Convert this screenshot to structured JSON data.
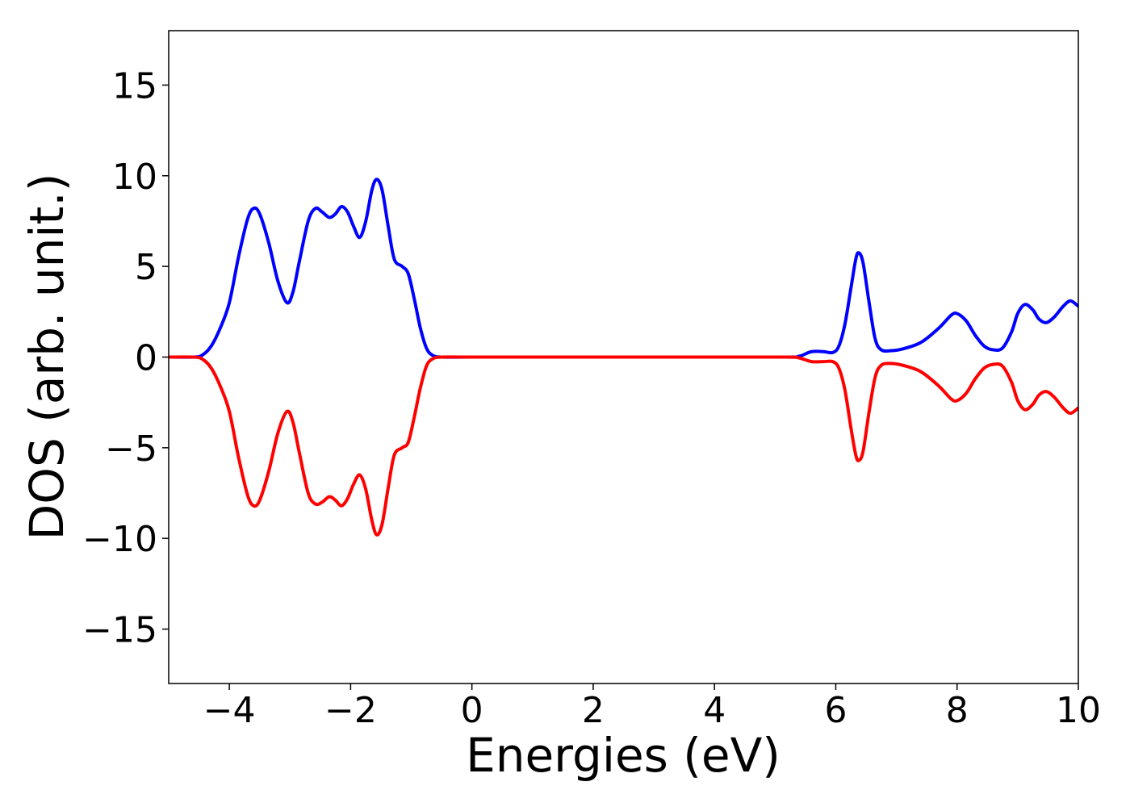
{
  "chart_data": {
    "type": "line",
    "title": "",
    "xlabel": "Energies (eV)",
    "ylabel": "DOS (arb. unit.)",
    "xlim": [
      -5,
      10
    ],
    "ylim": [
      -18,
      18
    ],
    "xticks": [
      -4,
      -2,
      0,
      2,
      4,
      6,
      8,
      10
    ],
    "xtick_labels": [
      "−4",
      "−2",
      "0",
      "2",
      "4",
      "6",
      "8",
      "10"
    ],
    "yticks": [
      -15,
      -10,
      -5,
      0,
      5,
      10,
      15
    ],
    "ytick_labels": [
      "−15",
      "−10",
      "−5",
      "0",
      "5",
      "10",
      "15"
    ],
    "grid": false,
    "legend": "none",
    "series": [
      {
        "color": "#0000ff",
        "points": [
          [
            -5.0,
            0.0
          ],
          [
            -4.6,
            0.0
          ],
          [
            -4.45,
            0.1
          ],
          [
            -4.3,
            0.6
          ],
          [
            -4.15,
            1.6
          ],
          [
            -4.0,
            3.0
          ],
          [
            -3.85,
            5.5
          ],
          [
            -3.7,
            7.6
          ],
          [
            -3.6,
            8.2
          ],
          [
            -3.5,
            7.9
          ],
          [
            -3.35,
            6.3
          ],
          [
            -3.2,
            4.2
          ],
          [
            -3.05,
            3.0
          ],
          [
            -2.95,
            3.6
          ],
          [
            -2.85,
            5.2
          ],
          [
            -2.7,
            7.5
          ],
          [
            -2.58,
            8.2
          ],
          [
            -2.47,
            8.0
          ],
          [
            -2.35,
            7.7
          ],
          [
            -2.25,
            7.9
          ],
          [
            -2.15,
            8.3
          ],
          [
            -2.05,
            8.0
          ],
          [
            -1.95,
            7.2
          ],
          [
            -1.85,
            6.6
          ],
          [
            -1.75,
            7.5
          ],
          [
            -1.65,
            9.2
          ],
          [
            -1.57,
            9.8
          ],
          [
            -1.48,
            9.2
          ],
          [
            -1.38,
            7.2
          ],
          [
            -1.28,
            5.4
          ],
          [
            -1.15,
            5.0
          ],
          [
            -1.05,
            4.6
          ],
          [
            -0.95,
            3.2
          ],
          [
            -0.85,
            1.6
          ],
          [
            -0.75,
            0.5
          ],
          [
            -0.65,
            0.1
          ],
          [
            -0.5,
            0.0
          ],
          [
            0.0,
            0.0
          ],
          [
            2.0,
            0.0
          ],
          [
            4.0,
            0.0
          ],
          [
            5.2,
            0.0
          ],
          [
            5.4,
            0.05
          ],
          [
            5.6,
            0.3
          ],
          [
            5.8,
            0.3
          ],
          [
            5.95,
            0.25
          ],
          [
            6.05,
            0.6
          ],
          [
            6.15,
            1.8
          ],
          [
            6.25,
            3.8
          ],
          [
            6.33,
            5.4
          ],
          [
            6.38,
            5.75
          ],
          [
            6.45,
            5.2
          ],
          [
            6.55,
            3.0
          ],
          [
            6.65,
            1.0
          ],
          [
            6.75,
            0.4
          ],
          [
            6.9,
            0.35
          ],
          [
            7.1,
            0.45
          ],
          [
            7.4,
            0.8
          ],
          [
            7.7,
            1.6
          ],
          [
            7.9,
            2.3
          ],
          [
            8.0,
            2.4
          ],
          [
            8.15,
            2.0
          ],
          [
            8.3,
            1.2
          ],
          [
            8.45,
            0.6
          ],
          [
            8.6,
            0.4
          ],
          [
            8.75,
            0.5
          ],
          [
            8.9,
            1.4
          ],
          [
            9.0,
            2.4
          ],
          [
            9.12,
            2.9
          ],
          [
            9.25,
            2.6
          ],
          [
            9.35,
            2.1
          ],
          [
            9.47,
            1.9
          ],
          [
            9.6,
            2.2
          ],
          [
            9.75,
            2.8
          ],
          [
            9.87,
            3.1
          ],
          [
            10.0,
            2.8
          ]
        ]
      },
      {
        "color": "#ff0000",
        "points": [
          [
            -5.0,
            0.0
          ],
          [
            -4.6,
            0.0
          ],
          [
            -4.45,
            -0.1
          ],
          [
            -4.3,
            -0.6
          ],
          [
            -4.15,
            -1.6
          ],
          [
            -4.0,
            -3.0
          ],
          [
            -3.85,
            -5.5
          ],
          [
            -3.7,
            -7.6
          ],
          [
            -3.6,
            -8.2
          ],
          [
            -3.5,
            -7.9
          ],
          [
            -3.35,
            -6.3
          ],
          [
            -3.2,
            -4.2
          ],
          [
            -3.05,
            -3.0
          ],
          [
            -2.95,
            -3.6
          ],
          [
            -2.85,
            -5.2
          ],
          [
            -2.7,
            -7.5
          ],
          [
            -2.58,
            -8.1
          ],
          [
            -2.47,
            -8.0
          ],
          [
            -2.35,
            -7.7
          ],
          [
            -2.25,
            -7.9
          ],
          [
            -2.15,
            -8.2
          ],
          [
            -2.05,
            -7.8
          ],
          [
            -1.95,
            -7.0
          ],
          [
            -1.85,
            -6.5
          ],
          [
            -1.75,
            -7.3
          ],
          [
            -1.65,
            -9.0
          ],
          [
            -1.57,
            -9.8
          ],
          [
            -1.48,
            -9.2
          ],
          [
            -1.38,
            -7.2
          ],
          [
            -1.28,
            -5.4
          ],
          [
            -1.15,
            -5.0
          ],
          [
            -1.05,
            -4.7
          ],
          [
            -0.95,
            -3.3
          ],
          [
            -0.85,
            -1.7
          ],
          [
            -0.75,
            -0.5
          ],
          [
            -0.65,
            -0.1
          ],
          [
            -0.5,
            0.0
          ],
          [
            0.0,
            0.0
          ],
          [
            2.0,
            0.0
          ],
          [
            4.0,
            0.0
          ],
          [
            5.2,
            0.0
          ],
          [
            5.4,
            -0.05
          ],
          [
            5.6,
            -0.25
          ],
          [
            5.8,
            -0.25
          ],
          [
            5.95,
            -0.25
          ],
          [
            6.05,
            -0.6
          ],
          [
            6.15,
            -1.8
          ],
          [
            6.25,
            -3.9
          ],
          [
            6.33,
            -5.4
          ],
          [
            6.38,
            -5.7
          ],
          [
            6.45,
            -5.2
          ],
          [
            6.55,
            -3.0
          ],
          [
            6.65,
            -1.1
          ],
          [
            6.75,
            -0.45
          ],
          [
            6.9,
            -0.35
          ],
          [
            7.1,
            -0.45
          ],
          [
            7.4,
            -0.8
          ],
          [
            7.7,
            -1.6
          ],
          [
            7.9,
            -2.3
          ],
          [
            8.0,
            -2.4
          ],
          [
            8.15,
            -2.0
          ],
          [
            8.3,
            -1.2
          ],
          [
            8.45,
            -0.6
          ],
          [
            8.6,
            -0.4
          ],
          [
            8.75,
            -0.5
          ],
          [
            8.9,
            -1.4
          ],
          [
            9.0,
            -2.4
          ],
          [
            9.12,
            -2.9
          ],
          [
            9.25,
            -2.6
          ],
          [
            9.35,
            -2.1
          ],
          [
            9.47,
            -1.9
          ],
          [
            9.6,
            -2.2
          ],
          [
            9.75,
            -2.8
          ],
          [
            9.87,
            -3.1
          ],
          [
            10.0,
            -2.8
          ]
        ]
      }
    ]
  }
}
